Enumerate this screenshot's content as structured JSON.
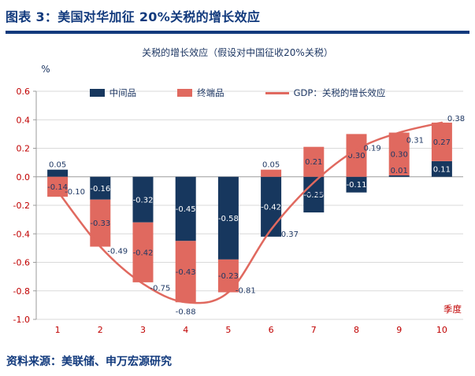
{
  "page": {
    "header_title": "图表 3：美国对华加征 20%关税的增长效应",
    "source_text": "资料来源：美联储、申万宏源研究"
  },
  "chart_data": {
    "type": "bar",
    "stacked": true,
    "title": "关税的增长效应（假设对中国征收20%关税）",
    "ylabel": "%",
    "xlabel": "季度",
    "categories": [
      "1",
      "2",
      "3",
      "4",
      "5",
      "6",
      "7",
      "8",
      "9",
      "10"
    ],
    "ylim": [
      -1.0,
      0.6
    ],
    "yticks": [
      0.6,
      0.4,
      0.2,
      0.0,
      -0.2,
      -0.4,
      -0.6,
      -0.8,
      -1.0
    ],
    "grid": true,
    "legend_position": "top-center",
    "series": [
      {
        "name": "中间品",
        "type": "bar",
        "color": "#17375E",
        "values": [
          0.05,
          -0.16,
          -0.32,
          -0.45,
          -0.58,
          -0.42,
          -0.25,
          -0.11,
          0.01,
          0.11
        ]
      },
      {
        "name": "终端品",
        "type": "bar",
        "color": "#E0695F",
        "values": [
          -0.14,
          -0.33,
          -0.42,
          -0.43,
          -0.23,
          0.05,
          0.21,
          0.3,
          0.3,
          0.27
        ]
      },
      {
        "name": "GDP：关税的增长效应",
        "type": "line",
        "color": "#E0695F",
        "values": [
          -0.1,
          -0.49,
          -0.75,
          -0.88,
          -0.81,
          -0.37,
          -0.04,
          0.19,
          0.31,
          0.38
        ]
      }
    ],
    "colors": {
      "navy_text": "#1F3864",
      "header_navy": "#123A7D",
      "axis_label_red": "#C00000",
      "gridline": "#D9D9D9",
      "axis_line": "#9B9B9B",
      "bar_label_on_blue": "#FFFFFF"
    }
  }
}
